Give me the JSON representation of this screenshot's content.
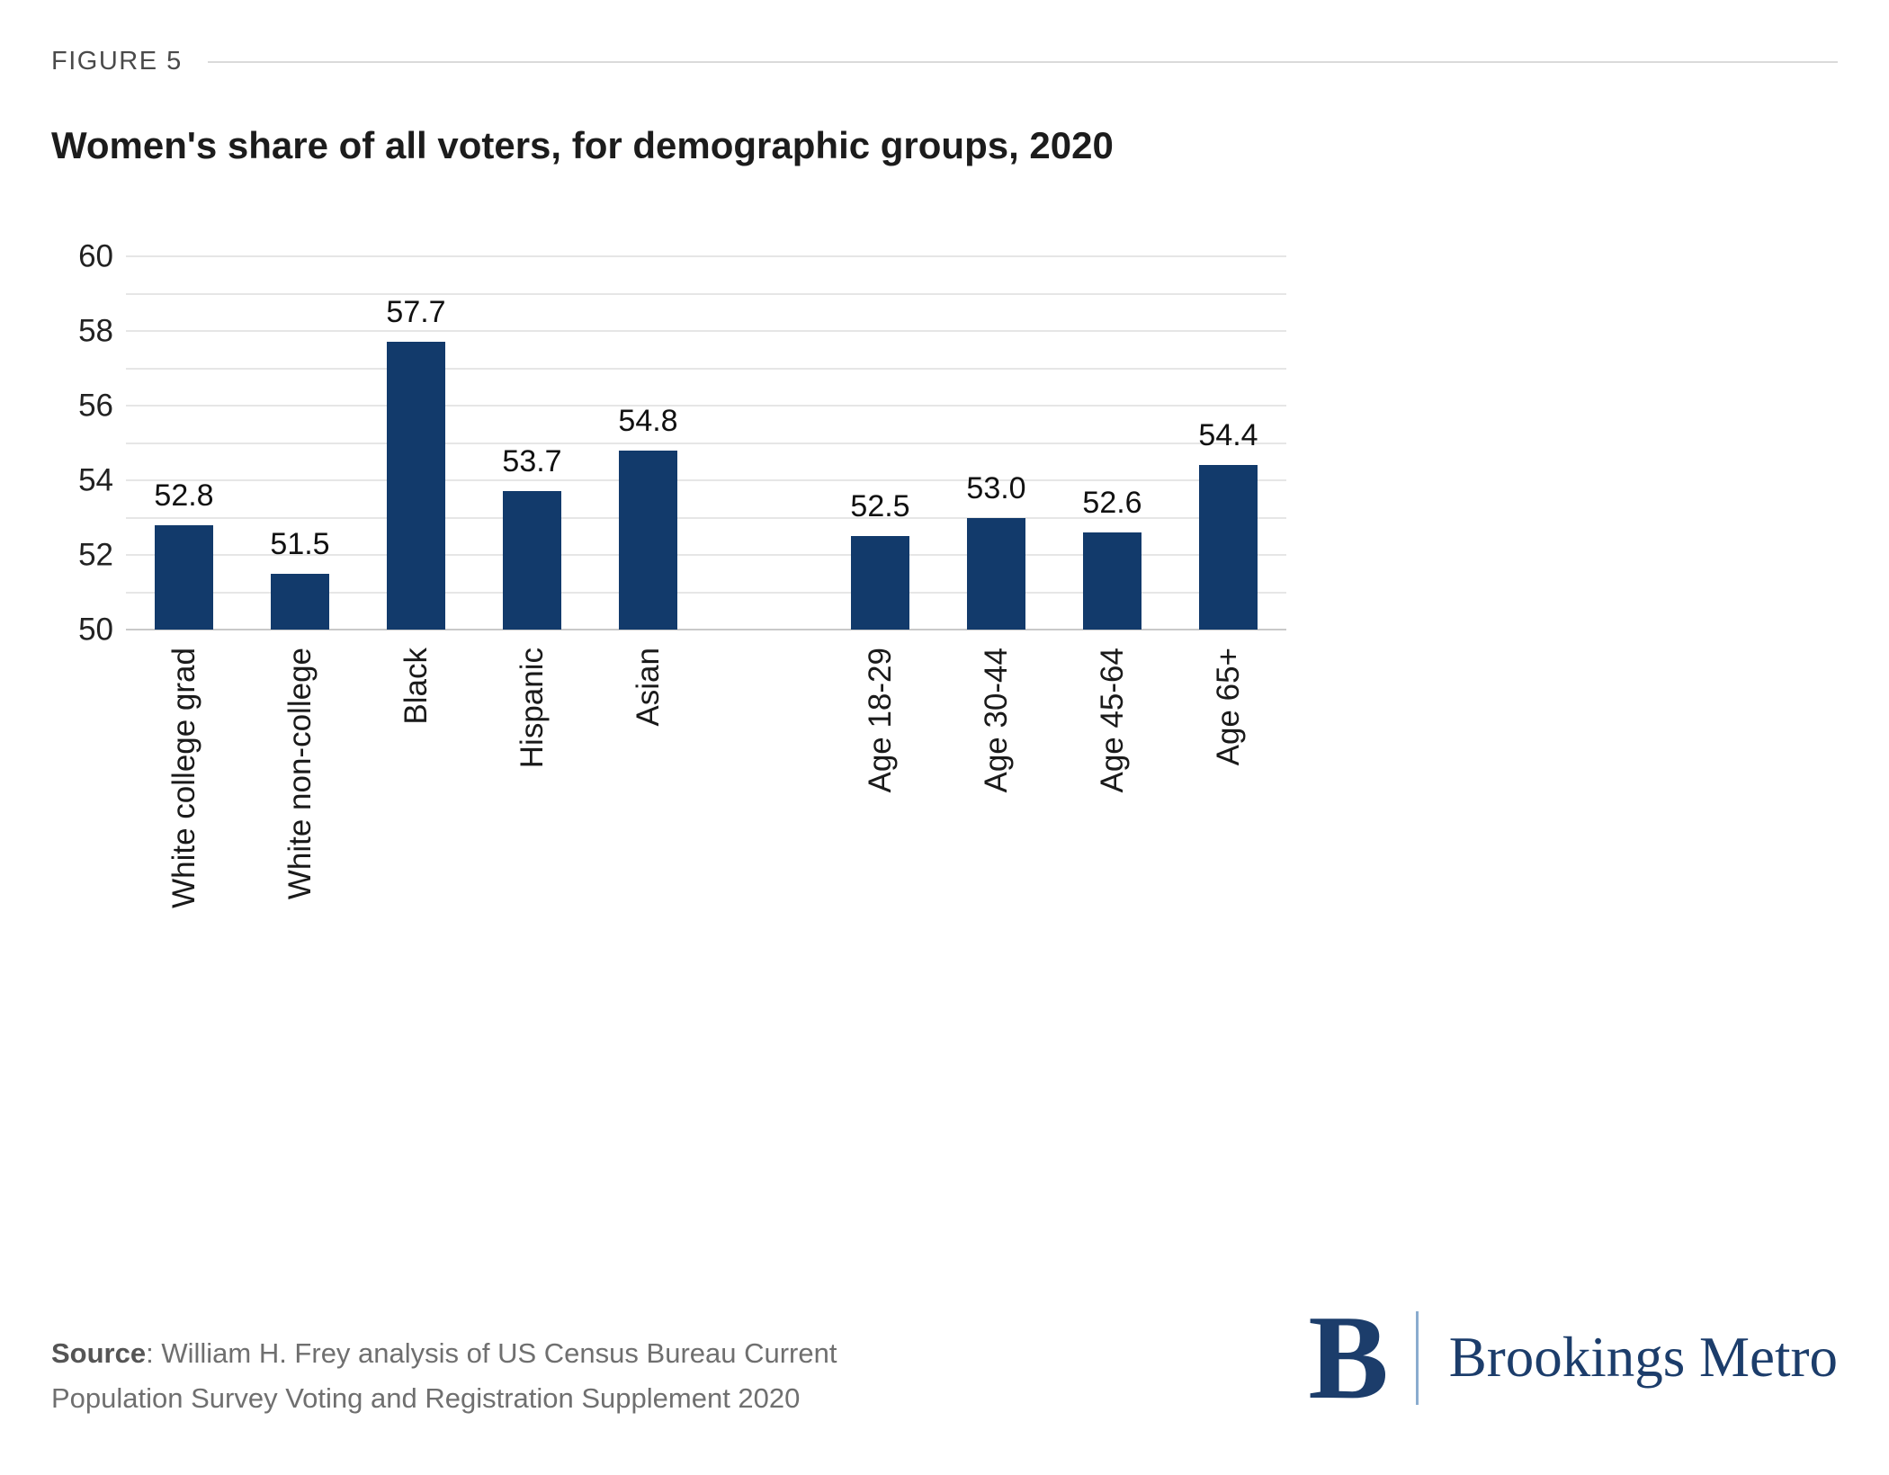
{
  "figure": {
    "label": "FIGURE 5"
  },
  "chart_data": {
    "type": "bar",
    "title": "Women's share of all voters, for demographic groups, 2020",
    "categories": [
      "White college grad",
      "White non-college",
      "Black",
      "Hispanic",
      "Asian",
      "Age 18-29",
      "Age 30-44",
      "Age 45-64",
      "Age 65+"
    ],
    "values": [
      52.8,
      51.5,
      57.7,
      53.7,
      54.8,
      52.5,
      53.0,
      52.6,
      54.4
    ],
    "value_labels": [
      "52.8",
      "51.5",
      "57.7",
      "53.7",
      "54.8",
      "52.5",
      "53.0",
      "52.6",
      "54.4"
    ],
    "gap_after_index": 4,
    "ylim": [
      50,
      60
    ],
    "yticks": [
      50,
      52,
      54,
      56,
      58,
      60
    ],
    "grid_step": 1,
    "grid": "horizontal",
    "legend": "none",
    "xlabel": "",
    "ylabel": "",
    "bar_color": "#123a6b"
  },
  "source": {
    "line1_prefix": "Source",
    "line1_rest": ": William H. Frey analysis of US Census Bureau Current",
    "line2": "Population Survey Voting and Registration Supplement 2020"
  },
  "logo": {
    "initial": "B",
    "name": "Brookings Metro"
  },
  "colors": {
    "bar_navy": "#123a6b",
    "logo_navy": "#1c3d6b",
    "divider_blue": "#8aaccf",
    "gridline": "#e6e6e6"
  }
}
